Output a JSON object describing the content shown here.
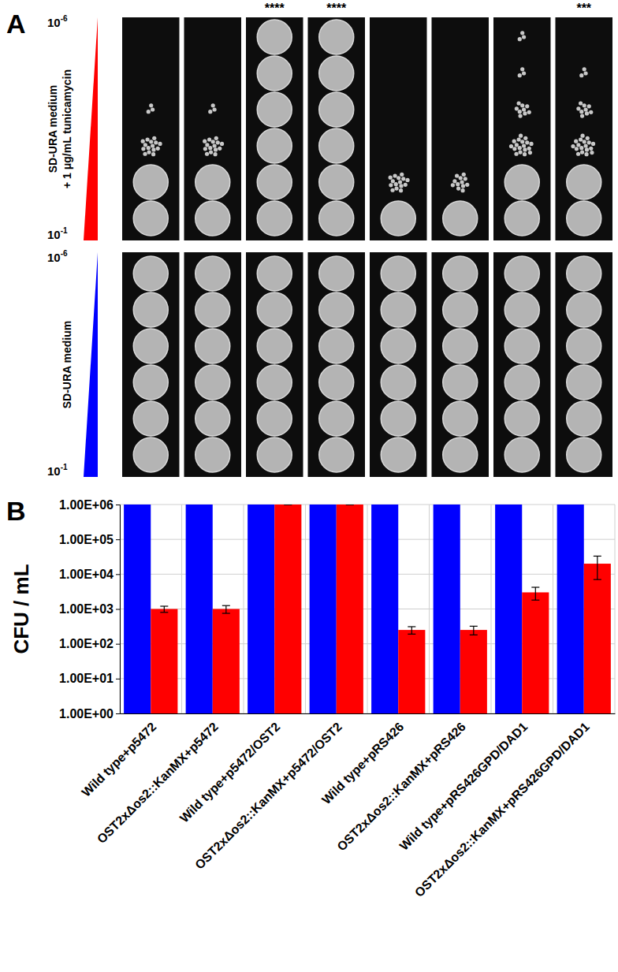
{
  "chart_data": {
    "type": "bar",
    "categories": [
      "Wild type+p5472",
      "OST2xΔos2::KanMX+p5472",
      "Wild type+p5472/OST2",
      "OST2xΔos2::KanMX+p5472/OST2",
      "Wild type+pRS426",
      "OST2xΔos2::KanMX+pRS426",
      "Wild type+pRS426GPD/DAD1",
      "OST2xΔos2::KanMX+pRS426GPD/DAD1"
    ],
    "series": [
      {
        "color": "#0000ff",
        "values": [
          1000000,
          1000000,
          1000000,
          1000000,
          1000000,
          1000000,
          1000000,
          1000000
        ]
      },
      {
        "color": "#ff0000",
        "values": [
          1000,
          1000,
          1000000,
          1000000,
          250,
          250,
          3000,
          20000
        ],
        "errors": [
          200,
          250,
          0,
          0,
          60,
          70,
          1200,
          13000
        ]
      }
    ],
    "ylabel": "CFU / mL",
    "ylim": [
      1,
      1000000
    ],
    "yticks": [
      {
        "value": 1,
        "label": "1.00E+00"
      },
      {
        "value": 10,
        "label": "1.00E+01"
      },
      {
        "value": 100,
        "label": "1.00E+02"
      },
      {
        "value": 1000,
        "label": "1.00E+03"
      },
      {
        "value": 10000,
        "label": "1.00E+04"
      },
      {
        "value": 100000,
        "label": "1.00E+05"
      },
      {
        "value": 1000000,
        "label": "1.00E+06"
      }
    ],
    "log": "y",
    "grid": true
  },
  "panel_b_label": "B",
  "panel_a": {
    "label": "A",
    "significance": [
      null,
      null,
      "****",
      "****",
      null,
      null,
      null,
      "***"
    ],
    "rows": [
      {
        "label_lines": [
          "SD-URA medium",
          "+ 1 μg/mL tunicamycin"
        ],
        "color": "#ff0000",
        "top": {
          "base": "10",
          "exponent": "-6"
        },
        "bottom": {
          "base": "10",
          "exponent": "-1"
        },
        "growth": [
          [
            1,
            1,
            0.5,
            0.1,
            0,
            0
          ],
          [
            1,
            1,
            0.5,
            0.1,
            0,
            0
          ],
          [
            1,
            1,
            1,
            1,
            1,
            1
          ],
          [
            1,
            1,
            1,
            1,
            1,
            1
          ],
          [
            1,
            0.5,
            0,
            0,
            0,
            0
          ],
          [
            1,
            0.4,
            0,
            0,
            0,
            0
          ],
          [
            1,
            1,
            0.6,
            0.3,
            0.1,
            0.1
          ],
          [
            1,
            1,
            0.6,
            0.3,
            0.1,
            0
          ]
        ]
      },
      {
        "label_lines": [
          "SD-URA medium"
        ],
        "color": "#0000ff",
        "top": {
          "base": "10",
          "exponent": "-6"
        },
        "bottom": {
          "base": "10",
          "exponent": "-1"
        },
        "growth": [
          [
            1,
            1,
            1,
            1,
            1,
            1
          ],
          [
            1,
            1,
            1,
            1,
            1,
            1
          ],
          [
            1,
            1,
            1,
            1,
            1,
            1
          ],
          [
            1,
            1,
            1,
            1,
            1,
            1
          ],
          [
            1,
            1,
            1,
            1,
            1,
            1
          ],
          [
            1,
            1,
            1,
            1,
            1,
            1
          ],
          [
            1,
            1,
            1,
            1,
            1,
            1
          ],
          [
            1,
            1,
            1,
            1,
            1,
            1
          ]
        ]
      }
    ]
  }
}
